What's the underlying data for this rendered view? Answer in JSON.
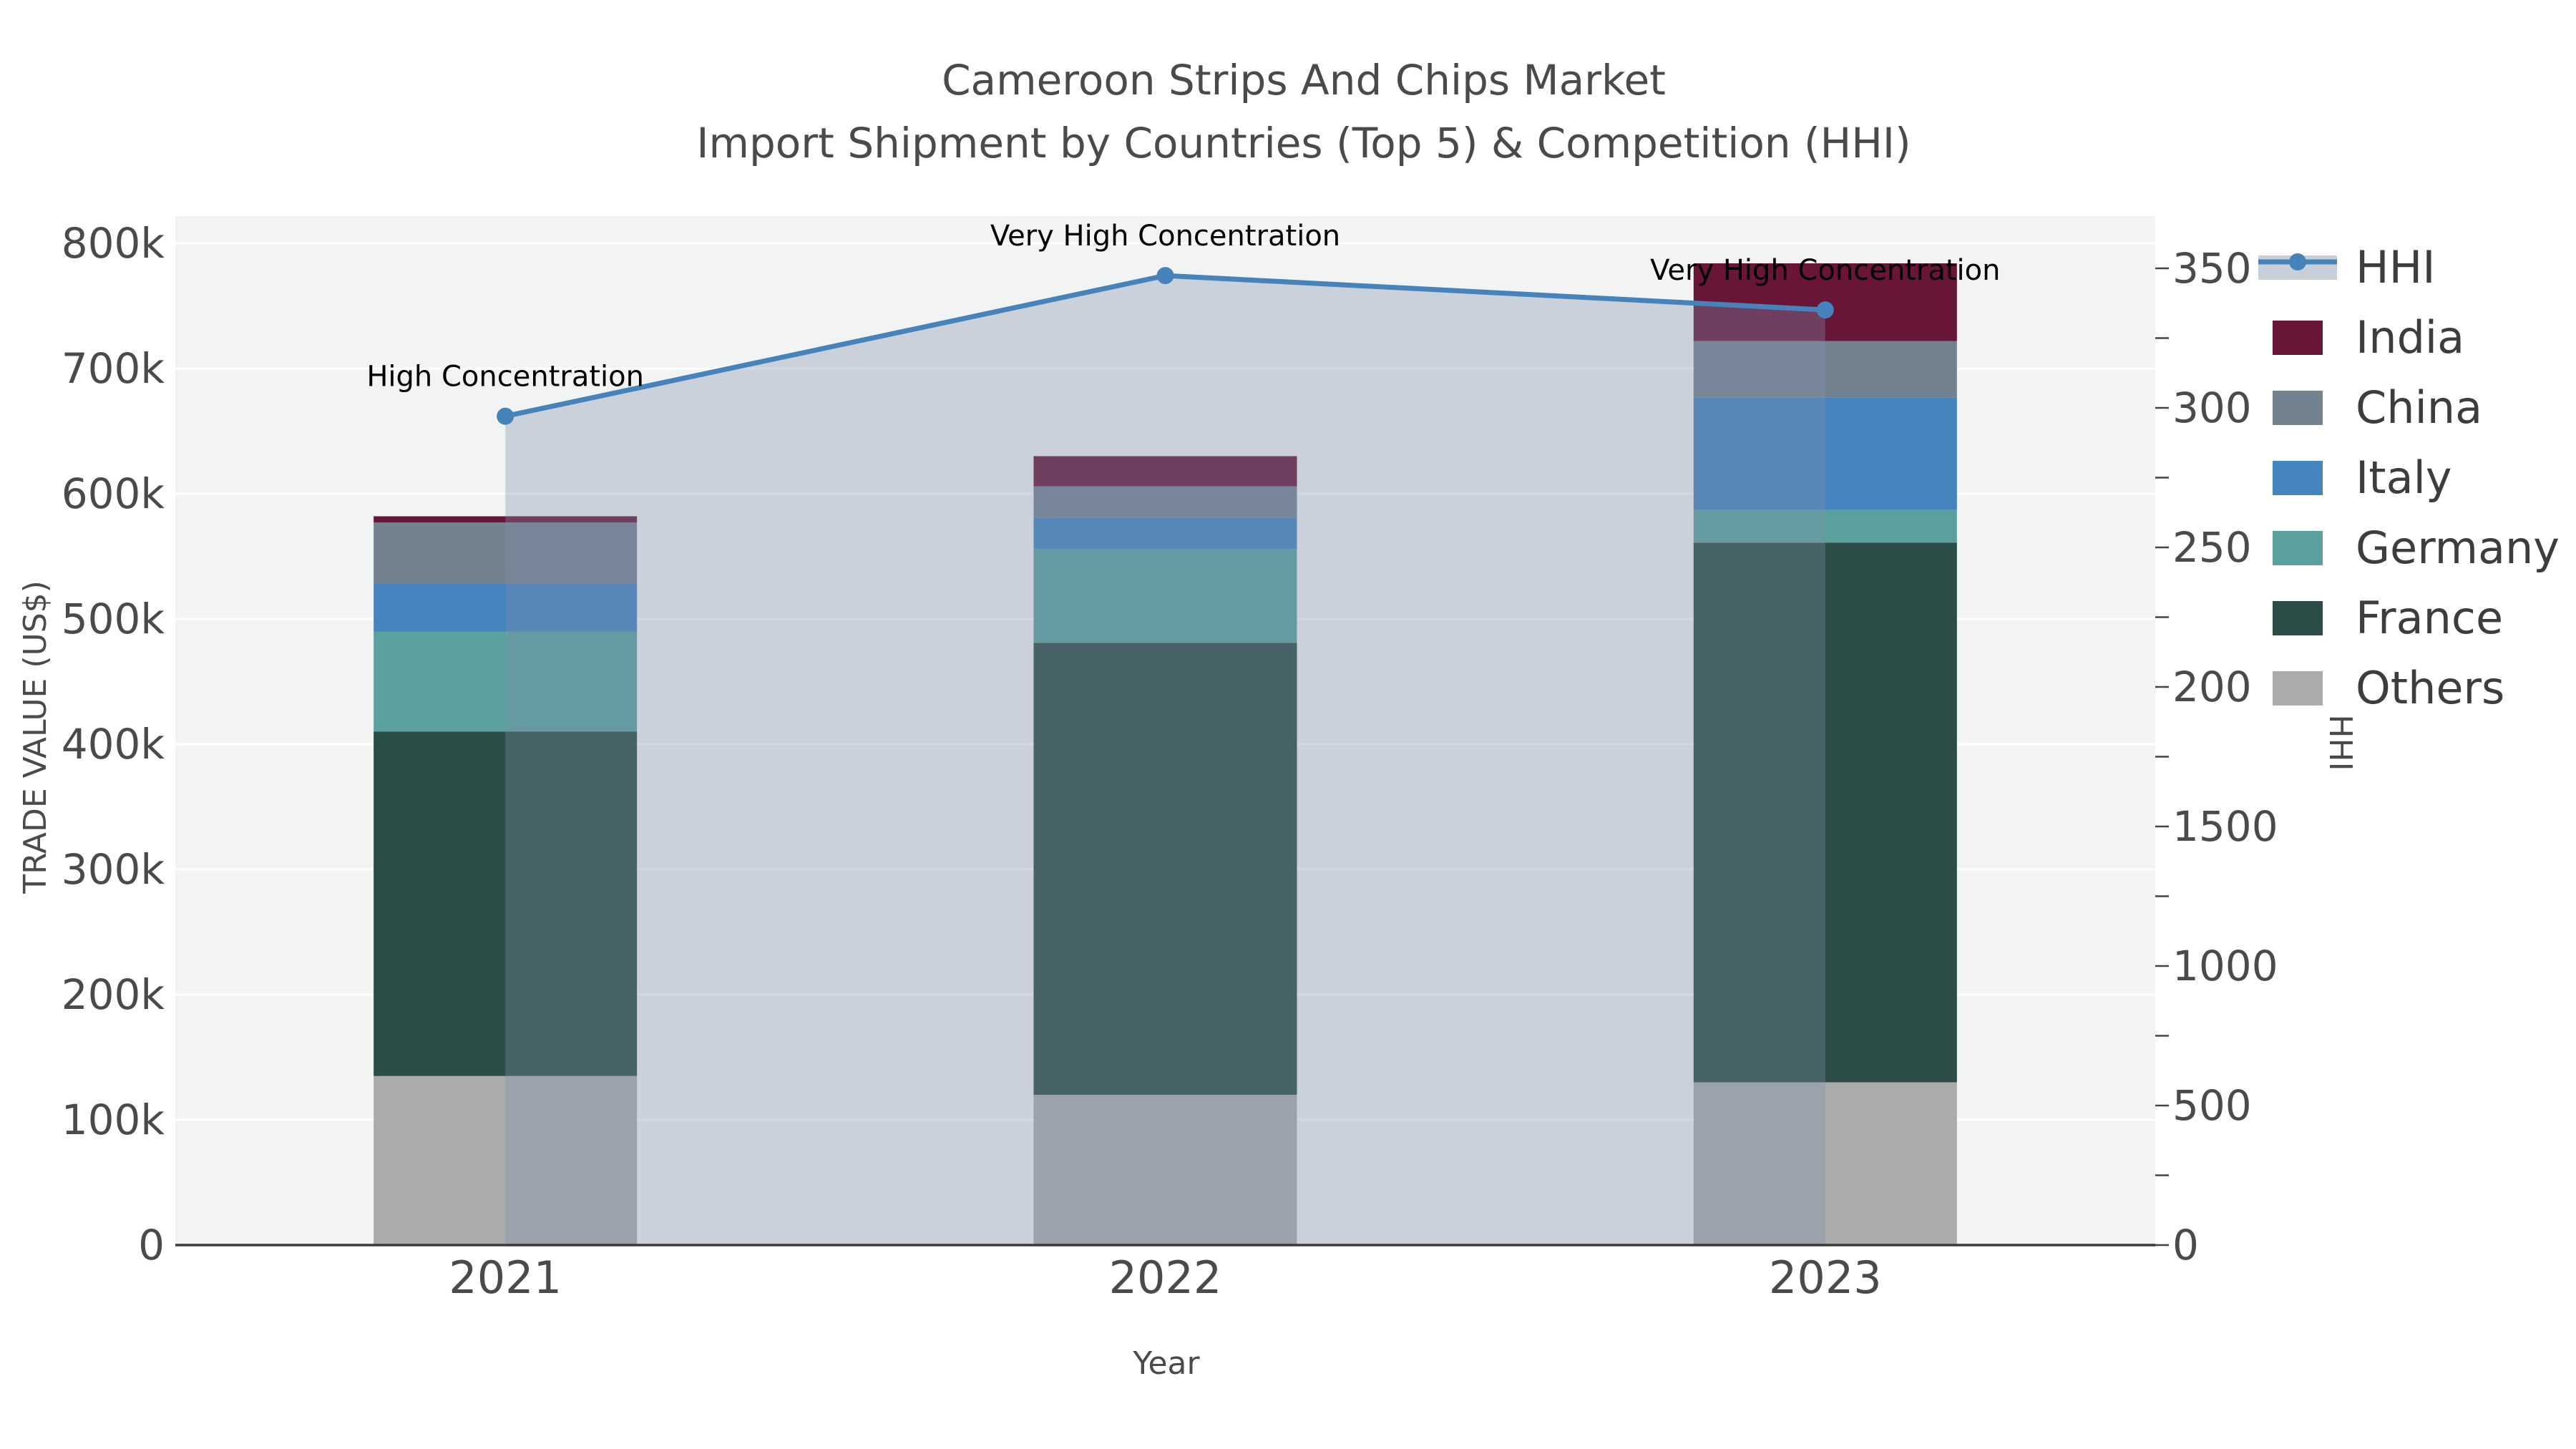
{
  "title": {
    "line1": "Cameroon Strips And Chips Market",
    "line2": "Import Shipment by Countries (Top 5) & Competition (HHI)"
  },
  "axes": {
    "x_title": "Year",
    "y_left_title": "TRADE VALUE (US$)",
    "y_right_title": "HHI",
    "x_ticks": [
      "2021",
      "2022",
      "2023"
    ],
    "y_left_ticks": [
      {
        "value": 0,
        "label": "0"
      },
      {
        "value": 100000,
        "label": "100k"
      },
      {
        "value": 200000,
        "label": "200k"
      },
      {
        "value": 300000,
        "label": "300k"
      },
      {
        "value": 400000,
        "label": "400k"
      },
      {
        "value": 500000,
        "label": "500k"
      },
      {
        "value": 600000,
        "label": "600k"
      },
      {
        "value": 700000,
        "label": "700k"
      },
      {
        "value": 800000,
        "label": "800k"
      }
    ],
    "y_right_ticks": [
      {
        "value": 0,
        "label": "0"
      },
      {
        "value": 500,
        "label": "500"
      },
      {
        "value": 1000,
        "label": "1000"
      },
      {
        "value": 1500,
        "label": "1500"
      },
      {
        "value": 2000,
        "label": "2000"
      },
      {
        "value": 2500,
        "label": "2500"
      },
      {
        "value": 3000,
        "label": "3000"
      },
      {
        "value": 3500,
        "label": "3500"
      }
    ]
  },
  "legend": {
    "items": [
      {
        "label": "HHI",
        "type": "line",
        "color": "#4583BA",
        "band_color": "#C9CFD9"
      },
      {
        "label": "India",
        "type": "swatch",
        "color": "#681537"
      },
      {
        "label": "China",
        "type": "swatch",
        "color": "#73828F"
      },
      {
        "label": "Italy",
        "type": "swatch",
        "color": "#4484BF"
      },
      {
        "label": "Germany",
        "type": "swatch",
        "color": "#5AA19E"
      },
      {
        "label": "France",
        "type": "swatch",
        "color": "#2B4C47"
      },
      {
        "label": "Others",
        "type": "swatch",
        "color": "#AAACAC"
      }
    ]
  },
  "chart_data": {
    "type": "bar+line",
    "title": "Cameroon Strips And Chips Market — Import Shipment by Countries (Top 5) & Competition (HHI)",
    "categories": [
      "2021",
      "2022",
      "2023"
    ],
    "xlabel": "Year",
    "ylabel_left": "TRADE VALUE (US$)",
    "ylabel_right": "HHI",
    "ylim_left": [
      0,
      800000
    ],
    "ylim_right": [
      0,
      3500
    ],
    "grid": true,
    "legend_position": "top-right",
    "plot_bg": "#F2F3F3",
    "bar_stack_order_bottom_to_top": [
      "Others",
      "France",
      "Germany",
      "Italy",
      "China",
      "India"
    ],
    "series": [
      {
        "name": "Others",
        "color": "#AAACAC",
        "values": [
          135000,
          120000,
          130000
        ]
      },
      {
        "name": "France",
        "color": "#2B4C47",
        "values": [
          275000,
          361000,
          431000
        ]
      },
      {
        "name": "Germany",
        "color": "#5AA19E",
        "values": [
          80000,
          75000,
          26000
        ]
      },
      {
        "name": "Italy",
        "color": "#4484BF",
        "values": [
          38000,
          25000,
          90000
        ]
      },
      {
        "name": "China",
        "color": "#73828F",
        "values": [
          49000,
          25000,
          45000
        ]
      },
      {
        "name": "India",
        "color": "#681537",
        "values": [
          5000,
          24000,
          62000
        ]
      }
    ],
    "line_series": {
      "name": "HHI",
      "color": "#4583BA",
      "values": [
        2970,
        3474,
        3351
      ],
      "fill": "tozeroy",
      "fill_color": "rgba(130,145,170,0.34)",
      "annotations": [
        "High Concentration",
        "Very High Concentration",
        "Very High Concentration"
      ]
    }
  }
}
